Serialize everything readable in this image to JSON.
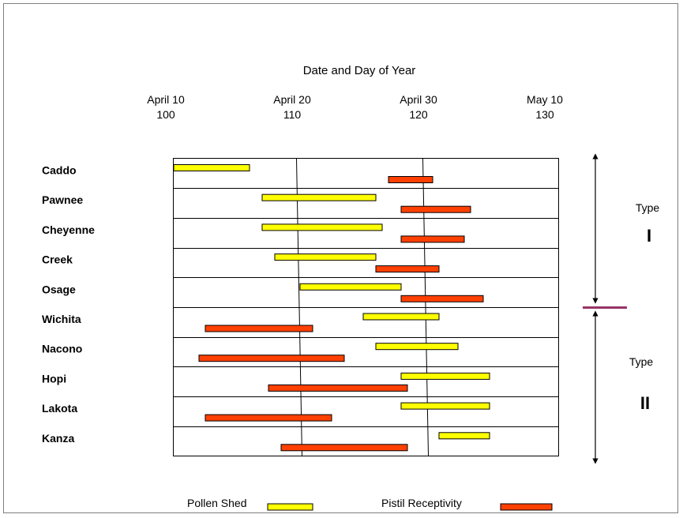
{
  "chart_data": {
    "type": "bar",
    "title": "Date and Day of Year",
    "x_ticks": [
      {
        "date": "April 10",
        "day": "100",
        "value": 100
      },
      {
        "date": "April 20",
        "day": "110",
        "value": 110
      },
      {
        "date": "April 30",
        "day": "120",
        "value": 120
      },
      {
        "date": "May 10",
        "day": "130",
        "value": 130
      }
    ],
    "xlim": [
      100,
      131
    ],
    "categories": [
      "Caddo",
      "Pawnee",
      "Cheyenne",
      "Creek",
      "Osage",
      "Wichita",
      "Nacono",
      "Hopi",
      "Lakota",
      "Kanza"
    ],
    "series": [
      {
        "name": "Pollen Shed",
        "color": "#ffff00",
        "ranges": [
          [
            100,
            106
          ],
          [
            107,
            116
          ],
          [
            107,
            116.5
          ],
          [
            108,
            116
          ],
          [
            110,
            118
          ],
          [
            115,
            121
          ],
          [
            116,
            122.5
          ],
          [
            118,
            125
          ],
          [
            118,
            125
          ],
          [
            121,
            125
          ]
        ]
      },
      {
        "name": "Pistil Receptivity",
        "color": "#ff4000",
        "ranges": [
          [
            117,
            120.5
          ],
          [
            118,
            123.5
          ],
          [
            118,
            123
          ],
          [
            116,
            121
          ],
          [
            118,
            124.5
          ],
          [
            102.5,
            111
          ],
          [
            102,
            113.5
          ],
          [
            107.5,
            118.5
          ],
          [
            102.5,
            112.5
          ],
          [
            108.5,
            118.5
          ]
        ]
      }
    ],
    "vertical_lines": [
      110,
      120
    ],
    "grid": "horizontal",
    "groups": [
      {
        "label": "Type",
        "numeral": "I",
        "from": "Caddo",
        "to": "Osage"
      },
      {
        "label": "Type",
        "numeral": "II",
        "from": "Wichita",
        "to": "Kanza"
      }
    ],
    "separator_color": "#993366",
    "legend": {
      "position": "bottom",
      "items": [
        {
          "label": "Pollen Shed",
          "color": "#ffff00"
        },
        {
          "label": "Pistil Receptivity",
          "color": "#ff4000"
        }
      ]
    }
  }
}
